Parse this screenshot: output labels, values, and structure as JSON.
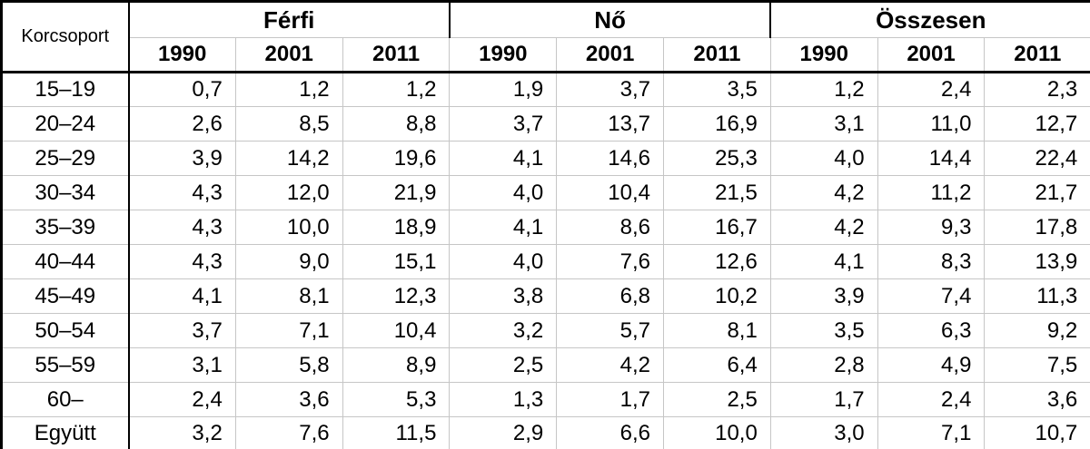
{
  "colors": {
    "background": "#ffffff",
    "text": "#000000",
    "grid_thin": "#c6c6c6",
    "grid_thick": "#000000"
  },
  "table": {
    "corner_label": "Korcsoport",
    "groups": [
      {
        "label": "Férfi"
      },
      {
        "label": "Nő"
      },
      {
        "label": "Összesen"
      }
    ],
    "years": [
      "1990",
      "2001",
      "2011"
    ],
    "rows": [
      {
        "age": "15–19",
        "values": [
          "0,7",
          "1,2",
          "1,2",
          "1,9",
          "3,7",
          "3,5",
          "1,2",
          "2,4",
          "2,3"
        ]
      },
      {
        "age": "20–24",
        "values": [
          "2,6",
          "8,5",
          "8,8",
          "3,7",
          "13,7",
          "16,9",
          "3,1",
          "11,0",
          "12,7"
        ]
      },
      {
        "age": "25–29",
        "values": [
          "3,9",
          "14,2",
          "19,6",
          "4,1",
          "14,6",
          "25,3",
          "4,0",
          "14,4",
          "22,4"
        ]
      },
      {
        "age": "30–34",
        "values": [
          "4,3",
          "12,0",
          "21,9",
          "4,0",
          "10,4",
          "21,5",
          "4,2",
          "11,2",
          "21,7"
        ]
      },
      {
        "age": "35–39",
        "values": [
          "4,3",
          "10,0",
          "18,9",
          "4,1",
          "8,6",
          "16,7",
          "4,2",
          "9,3",
          "17,8"
        ]
      },
      {
        "age": "40–44",
        "values": [
          "4,3",
          "9,0",
          "15,1",
          "4,0",
          "7,6",
          "12,6",
          "4,1",
          "8,3",
          "13,9"
        ]
      },
      {
        "age": "45–49",
        "values": [
          "4,1",
          "8,1",
          "12,3",
          "3,8",
          "6,8",
          "10,2",
          "3,9",
          "7,4",
          "11,3"
        ]
      },
      {
        "age": "50–54",
        "values": [
          "3,7",
          "7,1",
          "10,4",
          "3,2",
          "5,7",
          "8,1",
          "3,5",
          "6,3",
          "9,2"
        ]
      },
      {
        "age": "55–59",
        "values": [
          "3,1",
          "5,8",
          "8,9",
          "2,5",
          "4,2",
          "6,4",
          "2,8",
          "4,9",
          "7,5"
        ]
      },
      {
        "age": "60–",
        "values": [
          "2,4",
          "3,6",
          "5,3",
          "1,3",
          "1,7",
          "2,5",
          "1,7",
          "2,4",
          "3,6"
        ]
      },
      {
        "age": "Együtt",
        "values": [
          "3,2",
          "7,6",
          "11,5",
          "2,9",
          "6,6",
          "10,0",
          "3,0",
          "7,1",
          "10,7"
        ]
      }
    ]
  },
  "chart_data": {
    "type": "table",
    "title": "",
    "row_label": "Korcsoport",
    "categories": [
      "15–19",
      "20–24",
      "25–29",
      "30–34",
      "35–39",
      "40–44",
      "45–49",
      "50–54",
      "55–59",
      "60–",
      "Együtt"
    ],
    "columns_per_series": [
      "1990",
      "2001",
      "2011"
    ],
    "series": [
      {
        "name": "Férfi",
        "values": [
          [
            0.7,
            1.2,
            1.2
          ],
          [
            2.6,
            8.5,
            8.8
          ],
          [
            3.9,
            14.2,
            19.6
          ],
          [
            4.3,
            12.0,
            21.9
          ],
          [
            4.3,
            10.0,
            18.9
          ],
          [
            4.3,
            9.0,
            15.1
          ],
          [
            4.1,
            8.1,
            12.3
          ],
          [
            3.7,
            7.1,
            10.4
          ],
          [
            3.1,
            5.8,
            8.9
          ],
          [
            2.4,
            3.6,
            5.3
          ],
          [
            3.2,
            7.6,
            11.5
          ]
        ]
      },
      {
        "name": "Nő",
        "values": [
          [
            1.9,
            3.7,
            3.5
          ],
          [
            3.7,
            13.7,
            16.9
          ],
          [
            4.1,
            14.6,
            25.3
          ],
          [
            4.0,
            10.4,
            21.5
          ],
          [
            4.1,
            8.6,
            16.7
          ],
          [
            4.0,
            7.6,
            12.6
          ],
          [
            3.8,
            6.8,
            10.2
          ],
          [
            3.2,
            5.7,
            8.1
          ],
          [
            2.5,
            4.2,
            6.4
          ],
          [
            1.3,
            1.7,
            2.5
          ],
          [
            2.9,
            6.6,
            10.0
          ]
        ]
      },
      {
        "name": "Összesen",
        "values": [
          [
            1.2,
            2.4,
            2.3
          ],
          [
            3.1,
            11.0,
            12.7
          ],
          [
            4.0,
            14.4,
            22.4
          ],
          [
            4.2,
            11.2,
            21.7
          ],
          [
            4.2,
            9.3,
            17.8
          ],
          [
            4.1,
            8.3,
            13.9
          ],
          [
            3.9,
            7.4,
            11.3
          ],
          [
            3.5,
            6.3,
            9.2
          ],
          [
            2.8,
            4.9,
            7.5
          ],
          [
            1.7,
            2.4,
            3.6
          ],
          [
            3.0,
            7.1,
            10.7
          ]
        ]
      }
    ]
  }
}
